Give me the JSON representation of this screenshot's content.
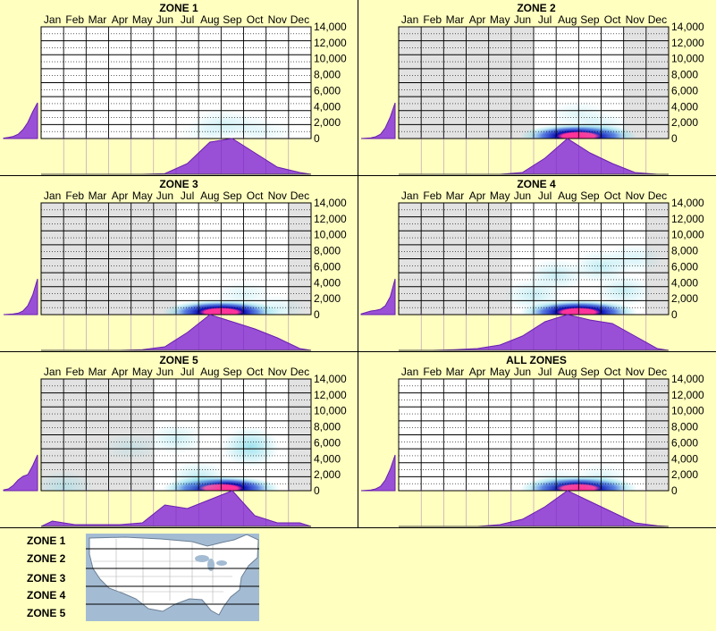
{
  "chart_data": [
    {
      "type": "heatmap",
      "title": "ZONE 1",
      "months": [
        "Jan",
        "Feb",
        "Mar",
        "Apr",
        "May",
        "Jun",
        "Jul",
        "Aug",
        "Sep",
        "Oct",
        "Nov",
        "Dec"
      ],
      "yticks": [
        "14,000",
        "12,000",
        "10,000",
        "8,000",
        "6,000",
        "4,000",
        "2,000",
        "0"
      ],
      "ylim": [
        0,
        14000
      ],
      "active_months": [
        0,
        1,
        2,
        3,
        4,
        5,
        6,
        7,
        8,
        9,
        10,
        11
      ],
      "hotspots": [
        {
          "month": 7.5,
          "elev": 2000,
          "level": 0.12
        },
        {
          "month": 8.5,
          "elev": 1500,
          "level": 0.1
        },
        {
          "month": 7.0,
          "elev": 800,
          "level": 0.1
        },
        {
          "month": 9.5,
          "elev": 800,
          "level": 0.08
        }
      ],
      "month_curve": [
        0,
        0,
        0,
        0,
        0,
        0.02,
        0.3,
        0.9,
        1.0,
        0.6,
        0.2,
        0.05
      ],
      "elev_curve": [
        1.0,
        0.75,
        0.45,
        0.25,
        0.12,
        0.06,
        0.03,
        0.01
      ]
    },
    {
      "type": "heatmap",
      "title": "ZONE 2",
      "months": [
        "Jan",
        "Feb",
        "Mar",
        "Apr",
        "May",
        "Jun",
        "Jul",
        "Aug",
        "Sep",
        "Oct",
        "Nov",
        "Dec"
      ],
      "yticks": [
        "14,000",
        "12,000",
        "10,000",
        "8,000",
        "6,000",
        "4,000",
        "2,000",
        "0"
      ],
      "ylim": [
        0,
        14000
      ],
      "active_months": [
        6,
        7,
        8,
        9
      ],
      "hotspots": [
        {
          "month": 7.5,
          "elev": 300,
          "level": 1.0
        },
        {
          "month": 7.5,
          "elev": 3000,
          "level": 0.12
        },
        {
          "month": 8.5,
          "elev": 1500,
          "level": 0.15
        }
      ],
      "month_curve": [
        0,
        0,
        0,
        0,
        0,
        0.05,
        0.45,
        1.0,
        0.6,
        0.3,
        0.05,
        0
      ],
      "elev_curve": [
        1.0,
        0.6,
        0.3,
        0.12,
        0.05,
        0.02,
        0.01,
        0
      ]
    },
    {
      "type": "heatmap",
      "title": "ZONE 3",
      "months": [
        "Jan",
        "Feb",
        "Mar",
        "Apr",
        "May",
        "Jun",
        "Jul",
        "Aug",
        "Sep",
        "Oct",
        "Nov",
        "Dec"
      ],
      "yticks": [
        "14,000",
        "12,000",
        "10,000",
        "8,000",
        "6,000",
        "4,000",
        "2,000",
        "0"
      ],
      "ylim": [
        0,
        14000
      ],
      "active_months": [
        6,
        7,
        8,
        9,
        10
      ],
      "hotspots": [
        {
          "month": 7.5,
          "elev": 300,
          "level": 1.0
        },
        {
          "month": 8.5,
          "elev": 2500,
          "level": 0.12
        },
        {
          "month": 10.0,
          "elev": 600,
          "level": 0.15
        }
      ],
      "month_curve": [
        0,
        0,
        0,
        0,
        0.02,
        0.1,
        0.5,
        1.0,
        0.8,
        0.6,
        0.35,
        0.05
      ],
      "elev_curve": [
        1.0,
        0.55,
        0.25,
        0.1,
        0.04,
        0.02,
        0.01,
        0
      ]
    },
    {
      "type": "heatmap",
      "title": "ZONE 4",
      "months": [
        "Jan",
        "Feb",
        "Mar",
        "Apr",
        "May",
        "Jun",
        "Jul",
        "Aug",
        "Sep",
        "Oct",
        "Nov",
        "Dec"
      ],
      "yticks": [
        "14,000",
        "12,000",
        "10,000",
        "8,000",
        "6,000",
        "4,000",
        "2,000",
        "0"
      ],
      "ylim": [
        0,
        14000
      ],
      "active_months": [
        5,
        6,
        7,
        8,
        9,
        10
      ],
      "hotspots": [
        {
          "month": 7.5,
          "elev": 300,
          "level": 1.0
        },
        {
          "month": 6.5,
          "elev": 5000,
          "level": 0.2
        },
        {
          "month": 8.5,
          "elev": 6000,
          "level": 0.22
        },
        {
          "month": 10.0,
          "elev": 7000,
          "level": 0.15
        },
        {
          "month": 5.5,
          "elev": 2500,
          "level": 0.2
        },
        {
          "month": 9.5,
          "elev": 3000,
          "level": 0.2
        }
      ],
      "month_curve": [
        0,
        0,
        0.02,
        0.05,
        0.15,
        0.4,
        0.8,
        1.0,
        0.85,
        0.75,
        0.4,
        0.05
      ],
      "elev_curve": [
        1.0,
        0.5,
        0.25,
        0.15,
        0.12,
        0.1,
        0.06,
        0.02
      ]
    },
    {
      "type": "heatmap",
      "title": "ZONE 5",
      "months": [
        "Jan",
        "Feb",
        "Mar",
        "Apr",
        "May",
        "Jun",
        "Jul",
        "Aug",
        "Sep",
        "Oct",
        "Nov",
        "Dec"
      ],
      "yticks": [
        "14,000",
        "12,000",
        "10,000",
        "8,000",
        "6,000",
        "4,000",
        "2,000",
        "0"
      ],
      "ylim": [
        0,
        14000
      ],
      "active_months": [
        5,
        6,
        7,
        8,
        9,
        10
      ],
      "hotspots": [
        {
          "month": 7.5,
          "elev": 300,
          "level": 0.95
        },
        {
          "month": 8.8,
          "elev": 5500,
          "level": 0.35
        },
        {
          "month": 5.5,
          "elev": 6500,
          "level": 0.18
        },
        {
          "month": 6.5,
          "elev": 1500,
          "level": 0.25
        },
        {
          "month": 0.5,
          "elev": 500,
          "level": 0.2
        },
        {
          "month": 3.5,
          "elev": 5500,
          "level": 0.12
        }
      ],
      "month_curve": [
        0.15,
        0.05,
        0.05,
        0.05,
        0.1,
        0.6,
        0.5,
        0.75,
        1.0,
        0.3,
        0.1,
        0.1
      ],
      "elev_curve": [
        1.0,
        0.7,
        0.45,
        0.4,
        0.3,
        0.15,
        0.05,
        0.02
      ]
    },
    {
      "type": "heatmap",
      "title": "ALL ZONES",
      "months": [
        "Jan",
        "Feb",
        "Mar",
        "Apr",
        "May",
        "Jun",
        "Jul",
        "Aug",
        "Sep",
        "Oct",
        "Nov",
        "Dec"
      ],
      "yticks": [
        "14,000",
        "12,000",
        "10,000",
        "8,000",
        "6,000",
        "4,000",
        "2,000",
        "0"
      ],
      "ylim": [
        0,
        14000
      ],
      "active_months": [
        0,
        1,
        2,
        3,
        4,
        5,
        6,
        7,
        8,
        9,
        10
      ],
      "hotspots": [
        {
          "month": 7.5,
          "elev": 300,
          "level": 1.0
        },
        {
          "month": 8.5,
          "elev": 1500,
          "level": 0.15
        },
        {
          "month": 6.5,
          "elev": 1200,
          "level": 0.12
        }
      ],
      "month_curve": [
        0,
        0,
        0,
        0,
        0.05,
        0.2,
        0.55,
        1.0,
        0.7,
        0.4,
        0.1,
        0.02
      ],
      "elev_curve": [
        1.0,
        0.6,
        0.3,
        0.12,
        0.05,
        0.02,
        0.01,
        0
      ]
    }
  ],
  "legend": {
    "zones": [
      "ZONE 1",
      "ZONE 2",
      "ZONE 3",
      "ZONE 4",
      "ZONE 5"
    ]
  },
  "colors": {
    "background": "#ffffc0",
    "curve_fill": "#9a50d6",
    "curve_stroke": "#6a1fb0",
    "inactive_month": "#e2e2e2",
    "hot": "#ff3399",
    "core": "#0a0ab4",
    "warm": "#2e5cd8",
    "cool": "#7fd9e8",
    "map_water": "#a4bcd3",
    "map_land": "#ffffff"
  }
}
